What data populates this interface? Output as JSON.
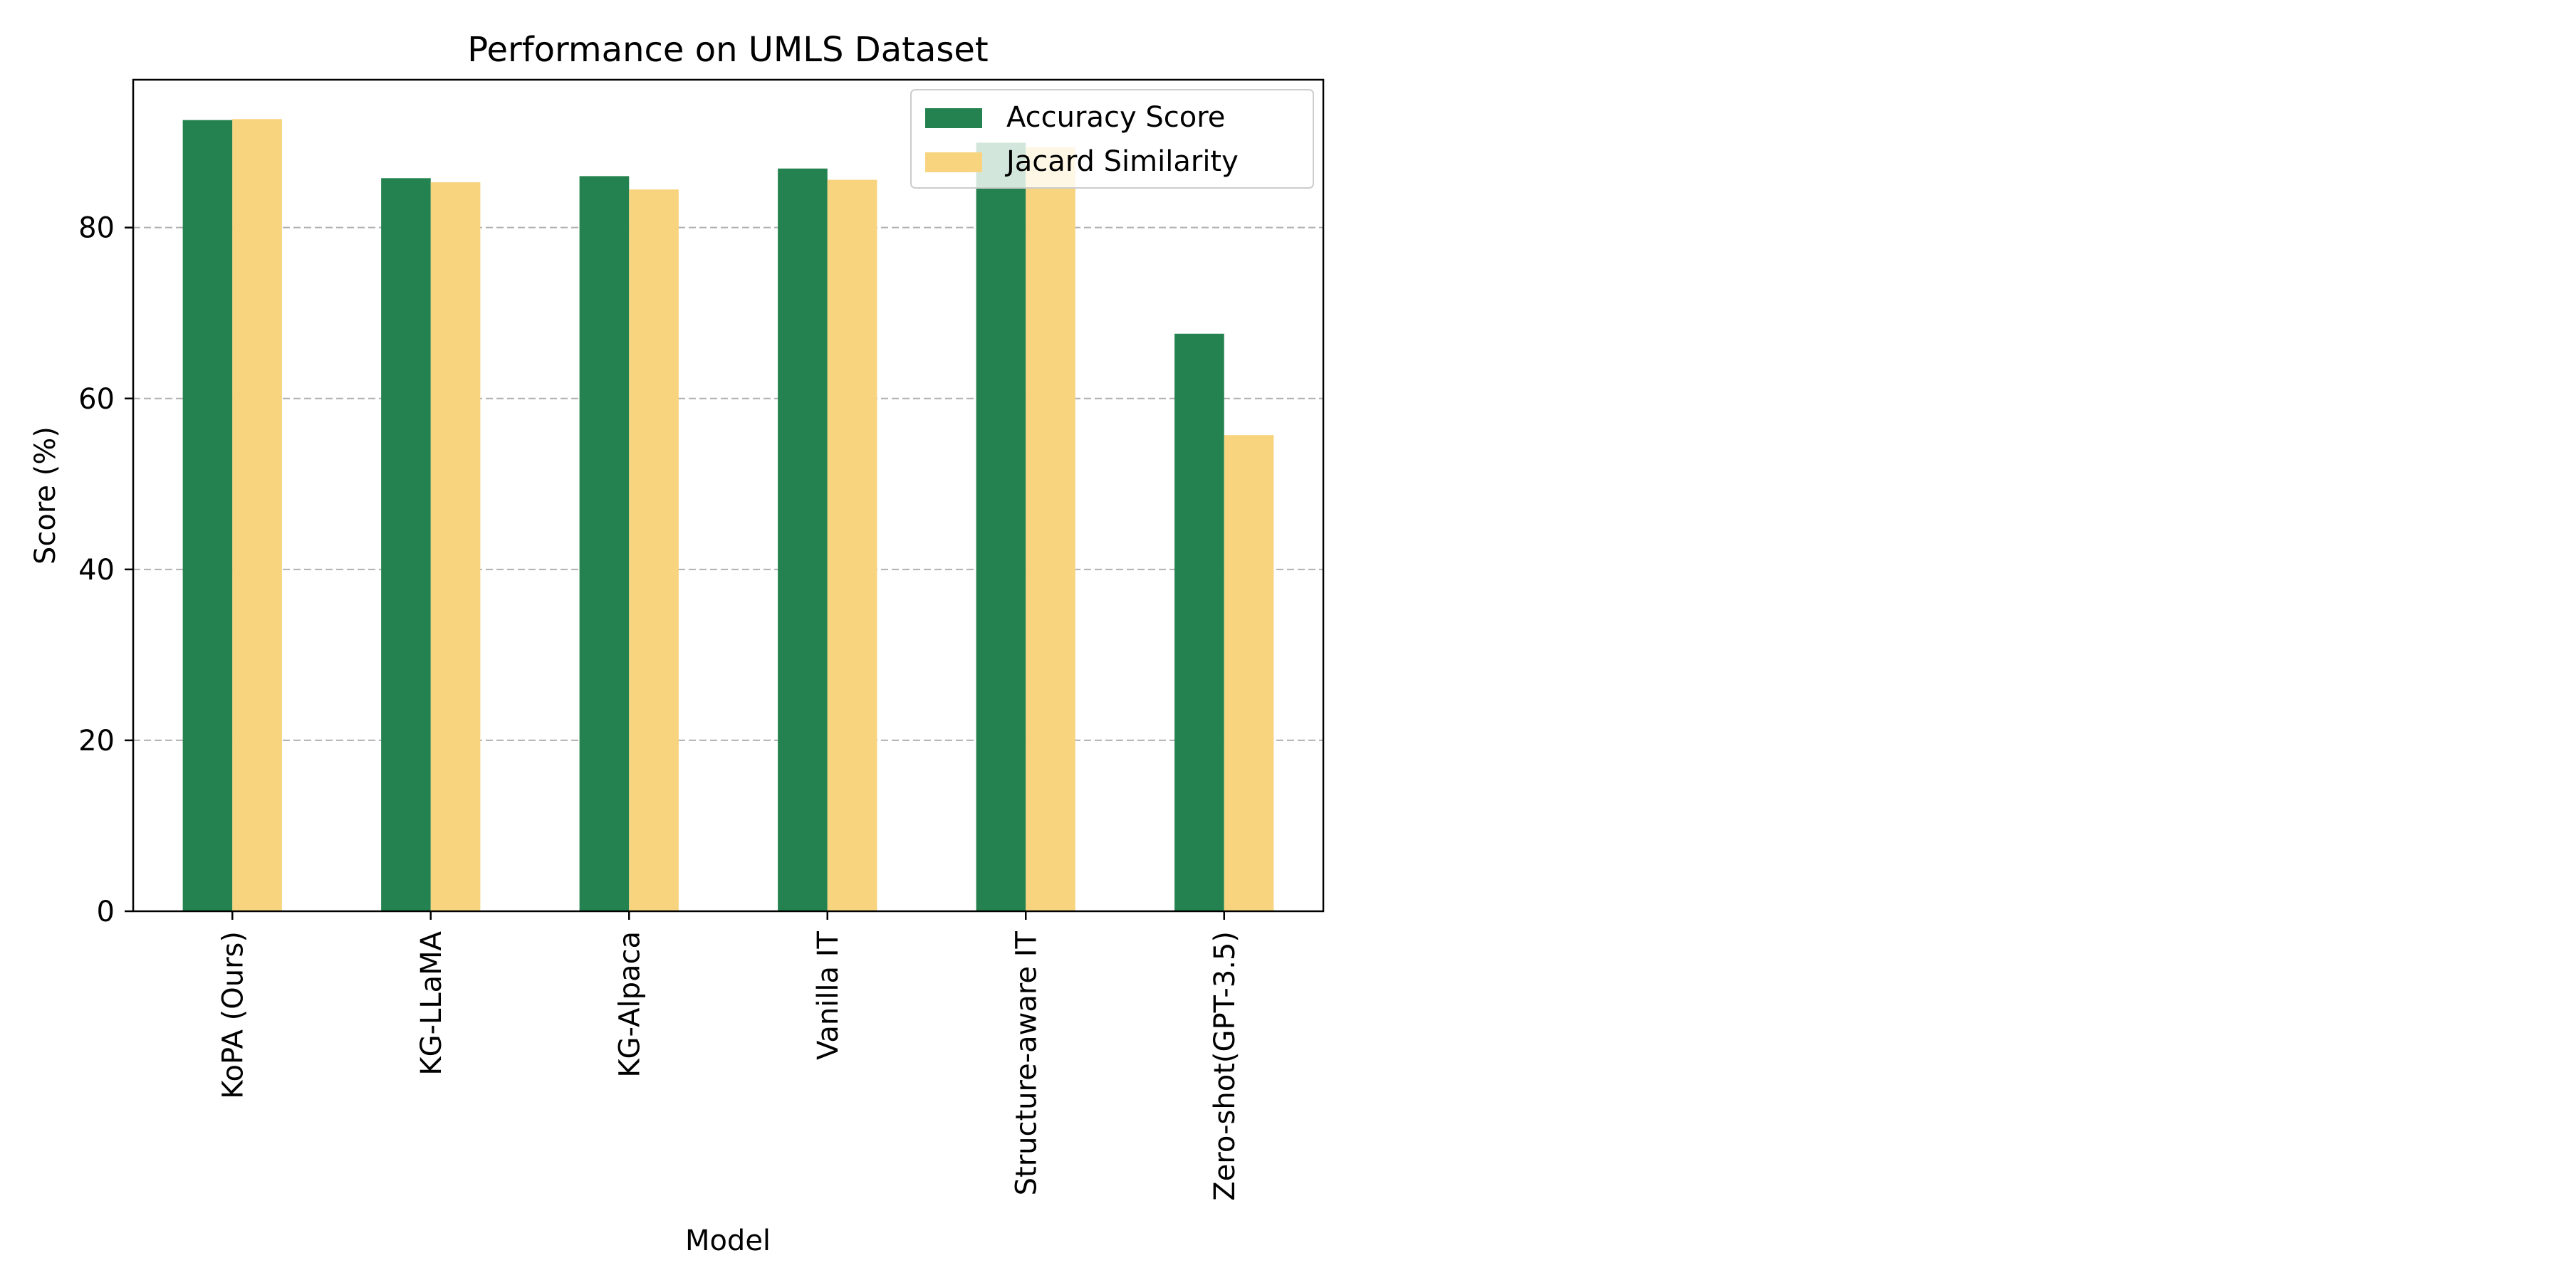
{
  "chart_data": {
    "type": "bar",
    "title": "Performance on UMLS Dataset",
    "xlabel": "Model",
    "ylabel": "Score (%)",
    "categories": [
      "KoPA (Ours)",
      "KG-LLaMA",
      "KG-Alpaca",
      "Vanilla IT",
      "Structure-aware IT",
      "Zero-shot(GPT-3.5)"
    ],
    "series": [
      {
        "name": "Accuracy Score",
        "color": "#23824f",
        "values": [
          92.58,
          85.78,
          86.02,
          86.91,
          89.93,
          67.58
        ]
      },
      {
        "name": "Jacard Similarity",
        "color": "#f8d47f",
        "values": [
          92.7,
          85.3,
          84.46,
          85.59,
          89.4,
          55.72
        ]
      }
    ],
    "ylim": [
      0,
      97.3
    ],
    "yticks": [
      0,
      20,
      40,
      60,
      80
    ],
    "grid": "y-dashed",
    "legend": "upper right"
  }
}
